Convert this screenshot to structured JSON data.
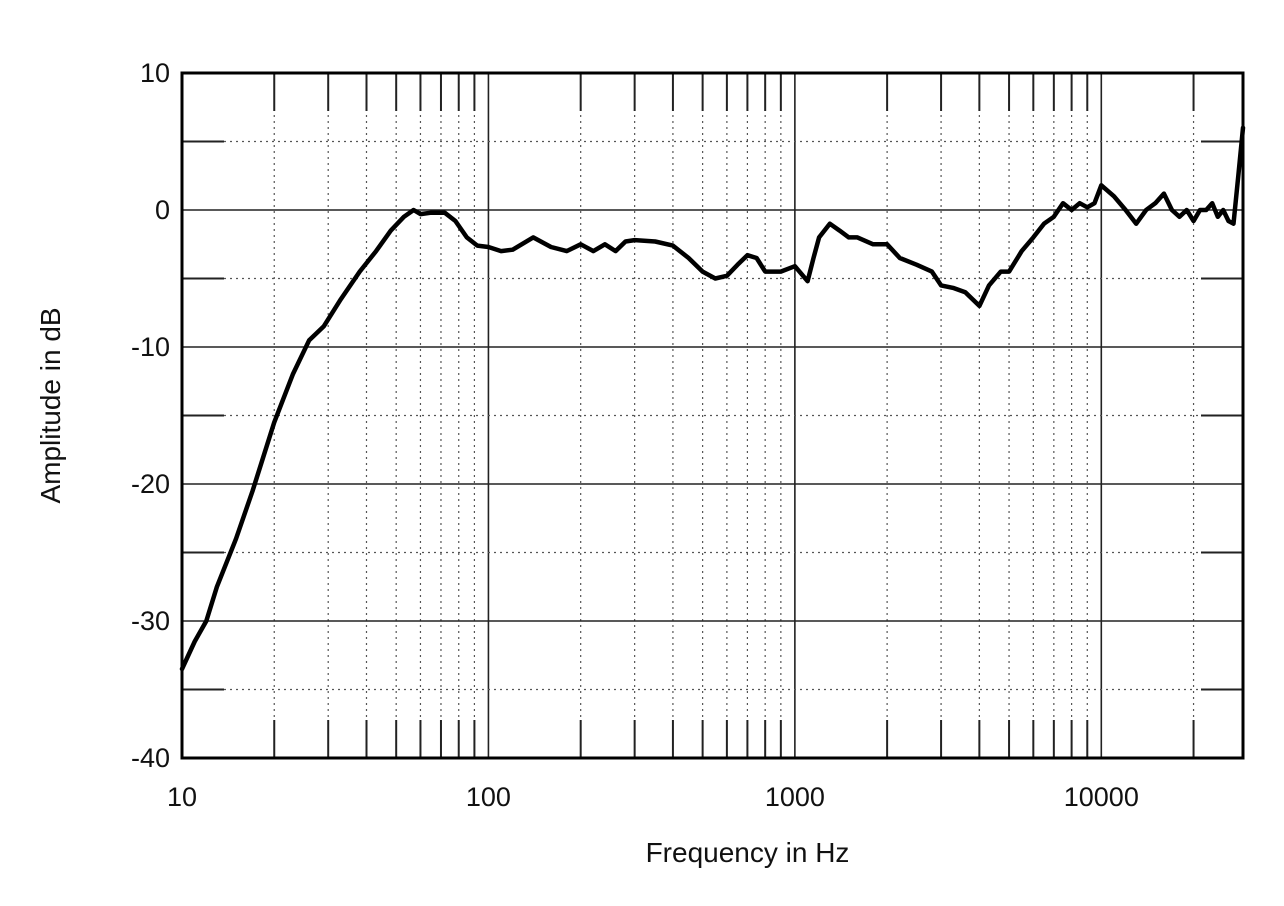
{
  "chart_data": {
    "type": "line",
    "title": "",
    "xlabel": "Frequency in Hz",
    "ylabel": "Amplitude in dB",
    "x_scale": "log",
    "xlim": [
      10,
      29000
    ],
    "ylim": [
      -40,
      10
    ],
    "x_ticks": [
      10,
      100,
      1000,
      10000
    ],
    "x_tick_labels": [
      "10",
      "100",
      "1000",
      "10000"
    ],
    "y_ticks": [
      10,
      0,
      -10,
      -20,
      -30,
      -40
    ],
    "y_tick_labels": [
      "10",
      "0",
      "-10",
      "-20",
      "-30",
      "-40"
    ],
    "grid": true,
    "legend": "none",
    "line_color": "#000000",
    "series": [
      {
        "x": [
          10,
          11,
          12,
          13,
          15,
          17,
          20,
          23,
          26,
          29,
          33,
          38,
          43,
          48,
          53,
          57,
          60,
          65,
          72,
          78,
          85,
          92,
          100,
          110,
          120,
          140,
          160,
          180,
          200,
          220,
          240,
          260,
          280,
          300,
          350,
          400,
          450,
          500,
          550,
          600,
          650,
          700,
          750,
          800,
          900,
          1000,
          1100,
          1150,
          1200,
          1300,
          1400,
          1500,
          1600,
          1800,
          2000,
          2200,
          2500,
          2800,
          3000,
          3300,
          3600,
          4000,
          4300,
          4700,
          5000,
          5500,
          6000,
          6500,
          7000,
          7500,
          8000,
          8500,
          9000,
          9500,
          10000,
          11000,
          12000,
          13000,
          14000,
          15000,
          16000,
          17000,
          18000,
          19000,
          20000,
          21000,
          22000,
          23000,
          24000,
          25000,
          26000,
          27000,
          28000,
          29000
        ],
        "y": [
          -33.5,
          -31.5,
          -30,
          -27.5,
          -24,
          -20.5,
          -15.5,
          -12,
          -9.5,
          -8.5,
          -6.5,
          -4.5,
          -3,
          -1.5,
          -0.5,
          0,
          -0.3,
          -0.2,
          -0.2,
          -0.8,
          -2,
          -2.6,
          -2.7,
          -3,
          -2.9,
          -2,
          -2.7,
          -3,
          -2.5,
          -3,
          -2.5,
          -3,
          -2.3,
          -2.2,
          -2.3,
          -2.6,
          -3.5,
          -4.5,
          -5,
          -4.8,
          -4,
          -3.3,
          -3.5,
          -4.5,
          -4.5,
          -4.1,
          -5.2,
          -3.5,
          -2,
          -1,
          -1.5,
          -2,
          -2,
          -2.5,
          -2.5,
          -3.5,
          -4,
          -4.5,
          -5.5,
          -5.7,
          -6,
          -7,
          -5.5,
          -4.5,
          -4.5,
          -3,
          -2,
          -1,
          -0.5,
          0.5,
          0,
          0.5,
          0.2,
          0.5,
          1.8,
          1,
          0,
          -1,
          0,
          0.5,
          1.2,
          0,
          -0.5,
          0,
          -0.8,
          0,
          0,
          0.5,
          -0.5,
          0,
          -0.8,
          -1,
          2.5,
          6
        ]
      }
    ]
  }
}
